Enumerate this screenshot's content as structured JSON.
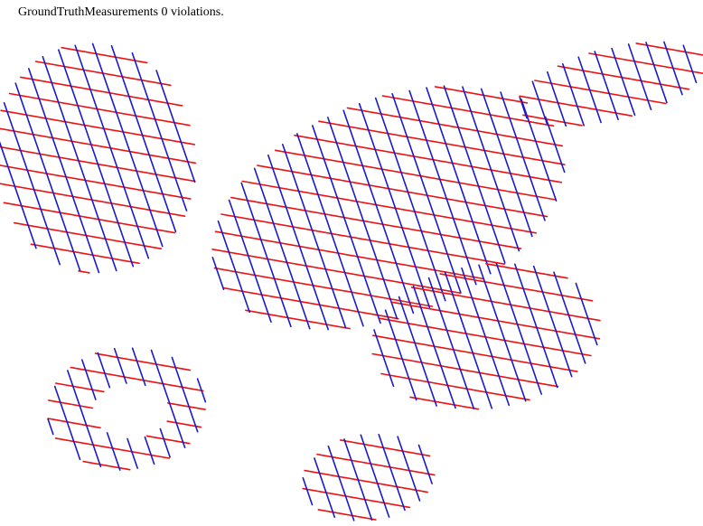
{
  "status": {
    "label": "GroundTruthMeasurements",
    "violation_count": "0",
    "suffix": "violations."
  },
  "colors": {
    "background": "#ffffff",
    "red_lines": "#ee1111",
    "blue_lines": "#1a1ac8",
    "text": "#000000"
  },
  "regions": [
    {
      "name": "top-left-patch"
    },
    {
      "name": "top-right-strip"
    },
    {
      "name": "center-large-patch"
    },
    {
      "name": "right-middle-patch"
    },
    {
      "name": "bottom-left-ring"
    },
    {
      "name": "bottom-center-patch"
    }
  ]
}
